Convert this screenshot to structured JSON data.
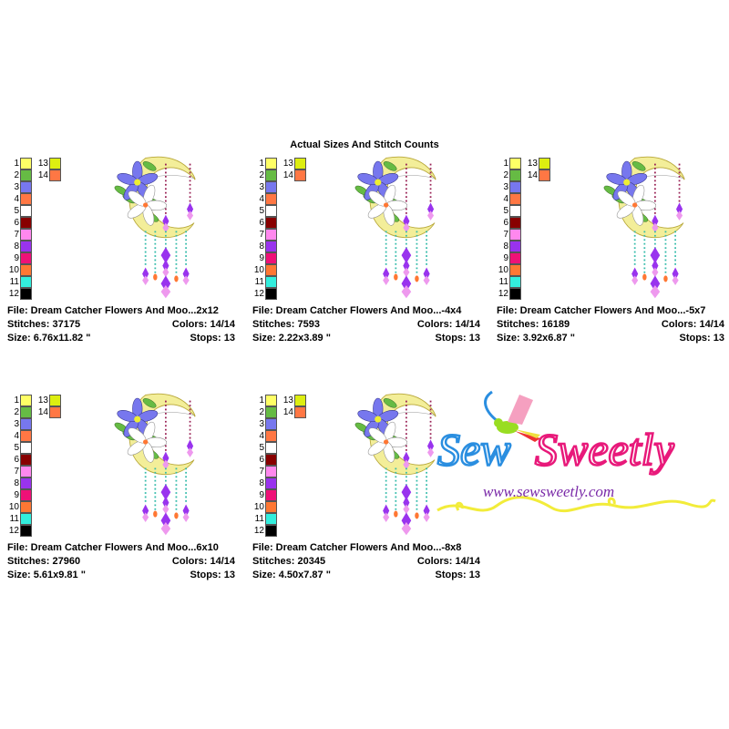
{
  "header": {
    "title": "Actual Sizes And Stitch Counts"
  },
  "palette": [
    {
      "num": "1",
      "color": "#ffff66"
    },
    {
      "num": "2",
      "color": "#66bb44"
    },
    {
      "num": "3",
      "color": "#7777ee"
    },
    {
      "num": "4",
      "color": "#ff7744"
    },
    {
      "num": "5",
      "color": "#ffffff"
    },
    {
      "num": "6",
      "color": "#880000"
    },
    {
      "num": "7",
      "color": "#ff88ee"
    },
    {
      "num": "8",
      "color": "#9933ee"
    },
    {
      "num": "9",
      "color": "#ee1177"
    },
    {
      "num": "10",
      "color": "#ff7733"
    },
    {
      "num": "11",
      "color": "#33eedd"
    },
    {
      "num": "12",
      "color": "#000000"
    },
    {
      "num": "13",
      "color": "#ddee11"
    },
    {
      "num": "14",
      "color": "#ff7744"
    }
  ],
  "designs": [
    {
      "file": "File: Dream Catcher Flowers And Moo...2x12",
      "stitches": "Stitches: 37175",
      "colors": "Colors: 14/14",
      "size": "Size: 6.76x11.82 \"",
      "stops": "Stops: 13"
    },
    {
      "file": "File: Dream Catcher Flowers And Moo...-4x4",
      "stitches": "Stitches: 7593",
      "colors": "Colors: 14/14",
      "size": "Size: 2.22x3.89 \"",
      "stops": "Stops: 13"
    },
    {
      "file": "File: Dream Catcher Flowers And Moo...-5x7",
      "stitches": "Stitches: 16189",
      "colors": "Colors: 14/14",
      "size": "Size: 3.92x6.87 \"",
      "stops": "Stops: 13"
    },
    {
      "file": "File: Dream Catcher Flowers And Moo...6x10",
      "stitches": "Stitches: 27960",
      "colors": "Colors: 14/14",
      "size": "Size: 5.61x9.81 \"",
      "stops": "Stops: 13"
    },
    {
      "file": "File: Dream Catcher Flowers And Moo...-8x8",
      "stitches": "Stitches: 20345",
      "colors": "Colors: 14/14",
      "size": "Size: 4.50x7.87 \"",
      "stops": "Stops: 13"
    }
  ],
  "logo": {
    "brand": "Sew Sweetly",
    "url": "www.sewsweetly.com",
    "colors": {
      "sew": "#2a8ee0",
      "sweetly": "#e8197a",
      "url": "#7a2aa8",
      "ribbon": "#f2ec3a"
    }
  }
}
